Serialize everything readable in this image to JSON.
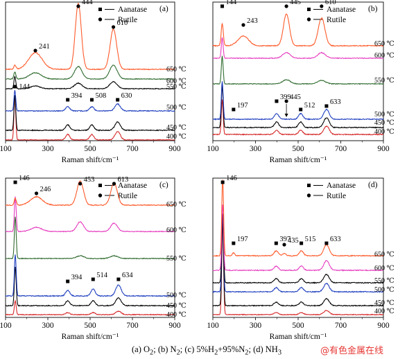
{
  "figure": {
    "caption_parts": [
      "(a) O",
      "2",
      "; (b) N",
      "2",
      ";  (c) 5%H",
      "2",
      "+95%N",
      "2",
      "; (d) NH",
      "3"
    ],
    "watermark": "@有色金属在线"
  },
  "chart_data": [
    {
      "type": "line",
      "panel_label": "(a)",
      "xlabel": "Raman shift/cm⁻¹",
      "ylabel": "",
      "xlim": [
        100,
        900
      ],
      "xticks": [
        100,
        300,
        500,
        700,
        900
      ],
      "legend": [
        "Aanatase",
        "Rutile"
      ],
      "legend_position": "top-right",
      "series": [
        {
          "name": "400 ℃",
          "color": "#d62728",
          "baseline": 202,
          "peaks": [
            [
              144,
              62,
              6
            ],
            [
              394,
              8,
              14
            ],
            [
              508,
              8,
              14
            ],
            [
              630,
              12,
              18
            ]
          ],
          "noise": 0.6
        },
        {
          "name": "450 ℃",
          "color": "#000000",
          "baseline": 188,
          "peaks": [
            [
              144,
              50,
              6
            ],
            [
              394,
              8,
              14
            ],
            [
              508,
              8,
              14
            ],
            [
              630,
              12,
              18
            ]
          ],
          "noise": 0.6
        },
        {
          "name": "500 ℃",
          "color": "#1f3fbf",
          "baseline": 160,
          "peaks": [
            [
              144,
              30,
              6
            ],
            [
              394,
              6,
              14
            ],
            [
              508,
              6,
              14
            ],
            [
              630,
              10,
              18
            ]
          ],
          "noise": 0.6
        },
        {
          "name": "550 ℃",
          "color": "#000000",
          "baseline": 128,
          "peaks": [
            [
              144,
              18,
              6
            ],
            [
              241,
              4,
              30
            ],
            [
              444,
              8,
              25
            ],
            [
              610,
              10,
              25
            ]
          ],
          "noise": 0.5
        },
        {
          "name": "600 ℃",
          "color": "#2f6b2f",
          "baseline": 114,
          "peaks": [
            [
              144,
              10,
              7
            ],
            [
              241,
              9,
              40
            ],
            [
              444,
              18,
              25
            ],
            [
              610,
              20,
              25
            ]
          ],
          "noise": 0.5
        },
        {
          "name": "650 ℃",
          "color": "#ff5a2a",
          "baseline": 100,
          "peaks": [
            [
              144,
              6,
              7
            ],
            [
              241,
              24,
              45
            ],
            [
              444,
              95,
              20
            ],
            [
              610,
              58,
              22
            ]
          ],
          "noise": 0.6
        }
      ],
      "annotations": [
        {
          "marker": "circle",
          "text": "444",
          "x": 444
        },
        {
          "marker": "circle",
          "text": "610",
          "x": 610
        },
        {
          "marker": "circle",
          "text": "241",
          "x": 241
        },
        {
          "marker": "square",
          "text": "144",
          "x": 144
        },
        {
          "marker": "square",
          "text": "394",
          "x": 394
        },
        {
          "marker": "square",
          "text": "508",
          "x": 508
        },
        {
          "marker": "square",
          "text": "630",
          "x": 630
        }
      ]
    },
    {
      "type": "line",
      "panel_label": "(b)",
      "xlabel": "Raman shift/cm⁻¹",
      "ylabel": "",
      "xlim": [
        100,
        900
      ],
      "xticks": [
        100,
        300,
        500,
        700,
        900
      ],
      "legend": [
        "Aanatase",
        "Rutile"
      ],
      "legend_position": "top-right",
      "series": [
        {
          "name": "400 ℃",
          "color": "#d62728",
          "baseline": 194,
          "peaks": [
            [
              144,
              50,
              6
            ],
            [
              399,
              6,
              14
            ],
            [
              512,
              6,
              14
            ],
            [
              633,
              12,
              18
            ]
          ],
          "noise": 0.6
        },
        {
          "name": "450 ℃",
          "color": "#000000",
          "baseline": 184,
          "peaks": [
            [
              144,
              60,
              6
            ],
            [
              399,
              8,
              14
            ],
            [
              512,
              8,
              14
            ],
            [
              633,
              14,
              18
            ]
          ],
          "noise": 0.6
        },
        {
          "name": "500 ℃",
          "color": "#1f3fbf",
          "baseline": 172,
          "peaks": [
            [
              144,
              55,
              6
            ],
            [
              399,
              8,
              14
            ],
            [
              512,
              8,
              14
            ],
            [
              633,
              14,
              18
            ]
          ],
          "noise": 0.6
        },
        {
          "name": "550 ℃",
          "color": "#2f6b2f",
          "baseline": 121,
          "peaks": [
            [
              144,
              40,
              6
            ],
            [
              445,
              6,
              25
            ],
            [
              610,
              5,
              25
            ]
          ],
          "noise": 0.5
        },
        {
          "name": "600 ℃",
          "color": "#e63cc0",
          "baseline": 84,
          "peaks": [
            [
              144,
              30,
              6
            ],
            [
              445,
              8,
              25
            ],
            [
              610,
              8,
              25
            ]
          ],
          "noise": 0.5
        },
        {
          "name": "650 ℃",
          "color": "#ff5a2a",
          "baseline": 66,
          "peaks": [
            [
              144,
              32,
              7
            ],
            [
              243,
              14,
              35
            ],
            [
              445,
              46,
              20
            ],
            [
              610,
              40,
              22
            ]
          ],
          "noise": 0.6
        }
      ],
      "annotations": [
        {
          "marker": "square",
          "text": "144",
          "x": 144
        },
        {
          "marker": "circle",
          "text": "243",
          "x": 243
        },
        {
          "marker": "circle",
          "text": "445",
          "x": 445
        },
        {
          "marker": "circle",
          "text": "610",
          "x": 610
        },
        {
          "marker": "square",
          "text": "197",
          "x": 197
        },
        {
          "marker": "square",
          "text": "399",
          "x": 399
        },
        {
          "marker": "circle",
          "text": "445",
          "x": 445
        },
        {
          "marker": "square",
          "text": "512",
          "x": 512
        },
        {
          "marker": "square",
          "text": "633",
          "x": 633
        }
      ]
    },
    {
      "type": "line",
      "panel_label": "(c)",
      "xlabel": "Raman shift/cm⁻¹",
      "ylabel": "",
      "xlim": [
        100,
        900
      ],
      "xticks": [
        100,
        300,
        500,
        700,
        900
      ],
      "legend": [
        "Aanatase",
        "Rutile"
      ],
      "legend_position": "top-right",
      "series": [
        {
          "name": "400 ℃",
          "color": "#d62728",
          "baseline": 454,
          "peaks": [
            [
              146,
              20,
              6
            ],
            [
              394,
              3,
              14
            ],
            [
              514,
              3,
              14
            ],
            [
              634,
              5,
              18
            ]
          ],
          "noise": 0.5
        },
        {
          "name": "450 ℃",
          "color": "#000000",
          "baseline": 441,
          "peaks": [
            [
              146,
              56,
              6
            ],
            [
              394,
              7,
              14
            ],
            [
              514,
              7,
              14
            ],
            [
              634,
              11,
              18
            ]
          ],
          "noise": 0.6
        },
        {
          "name": "500 ℃",
          "color": "#1f3fbf",
          "baseline": 427,
          "peaks": [
            [
              146,
              60,
              6
            ],
            [
              394,
              8,
              14
            ],
            [
              514,
              10,
              14
            ],
            [
              634,
              16,
              18
            ]
          ],
          "noise": 0.6
        },
        {
          "name": "550 ℃",
          "color": "#2f6b2f",
          "baseline": 373,
          "peaks": [
            [
              146,
              60,
              6
            ],
            [
              453,
              4,
              25
            ],
            [
              613,
              4,
              25
            ]
          ],
          "noise": 0.5
        },
        {
          "name": "600 ℃",
          "color": "#e63cc0",
          "baseline": 334,
          "peaks": [
            [
              146,
              50,
              6
            ],
            [
              246,
              6,
              35
            ],
            [
              453,
              14,
              22
            ],
            [
              613,
              12,
              22
            ]
          ],
          "noise": 0.5
        },
        {
          "name": "650 ℃",
          "color": "#ff5a2a",
          "baseline": 296,
          "peaks": [
            [
              146,
              10,
              7
            ],
            [
              246,
              12,
              40
            ],
            [
              453,
              35,
              22
            ],
            [
              613,
              32,
              22
            ]
          ],
          "noise": 0.6
        }
      ],
      "annotations": [
        {
          "marker": "square",
          "text": "146",
          "x": 146
        },
        {
          "marker": "circle",
          "text": "246",
          "x": 246
        },
        {
          "marker": "circle",
          "text": "453",
          "x": 453
        },
        {
          "marker": "circle",
          "text": "613",
          "x": 613
        },
        {
          "marker": "square",
          "text": "394",
          "x": 394
        },
        {
          "marker": "square",
          "text": "514",
          "x": 514
        },
        {
          "marker": "square",
          "text": "634",
          "x": 634
        }
      ]
    },
    {
      "type": "line",
      "panel_label": "(d)",
      "xlabel": "Raman shift/cm⁻¹",
      "ylabel": "",
      "xlim": [
        100,
        900
      ],
      "xticks": [
        100,
        300,
        500,
        700,
        900
      ],
      "legend": [
        "Aanatase",
        "Rutile"
      ],
      "legend_position": "top-right",
      "series": [
        {
          "name": "400 ℃",
          "color": "#d62728",
          "baseline": 454,
          "peaks": [
            [
              146,
              130,
              6
            ],
            [
              397,
              3,
              14
            ],
            [
              515,
              3,
              14
            ],
            [
              633,
              6,
              18
            ]
          ],
          "noise": 0.5
        },
        {
          "name": "450 ℃",
          "color": "#000000",
          "baseline": 441,
          "peaks": [
            [
              146,
              120,
              6
            ],
            [
              397,
              5,
              14
            ],
            [
              515,
              5,
              14
            ],
            [
              633,
              10,
              18
            ]
          ],
          "noise": 0.6
        },
        {
          "name": "500 ℃",
          "color": "#1f3fbf",
          "baseline": 421,
          "peaks": [
            [
              146,
              110,
              6
            ],
            [
              397,
              6,
              14
            ],
            [
              515,
              6,
              14
            ],
            [
              633,
              12,
              18
            ]
          ],
          "noise": 0.6
        },
        {
          "name": "550 ℃",
          "color": "#000000",
          "baseline": 408,
          "peaks": [
            [
              146,
              100,
              6
            ],
            [
              397,
              6,
              14
            ],
            [
              515,
              6,
              14
            ],
            [
              633,
              12,
              18
            ]
          ],
          "noise": 0.6
        },
        {
          "name": "600 ℃",
          "color": "#e63cc0",
          "baseline": 390,
          "peaks": [
            [
              146,
              95,
              6
            ],
            [
              397,
              6,
              14
            ],
            [
              515,
              6,
              14
            ],
            [
              633,
              14,
              18
            ]
          ],
          "noise": 0.6
        },
        {
          "name": "650 ℃",
          "color": "#ff5a2a",
          "baseline": 369,
          "peaks": [
            [
              146,
              110,
              6
            ],
            [
              197,
              4,
              8
            ],
            [
              397,
              7,
              14
            ],
            [
              435,
              3,
              12
            ],
            [
              515,
              7,
              14
            ],
            [
              633,
              16,
              18
            ]
          ],
          "noise": 0.6
        }
      ],
      "annotations": [
        {
          "marker": "square",
          "text": "146",
          "x": 146
        },
        {
          "marker": "square",
          "text": "197",
          "x": 197
        },
        {
          "marker": "square",
          "text": "397",
          "x": 397
        },
        {
          "marker": "circle",
          "text": "435",
          "x": 435
        },
        {
          "marker": "square",
          "text": "515",
          "x": 515
        },
        {
          "marker": "square",
          "text": "633",
          "x": 633
        }
      ]
    }
  ]
}
